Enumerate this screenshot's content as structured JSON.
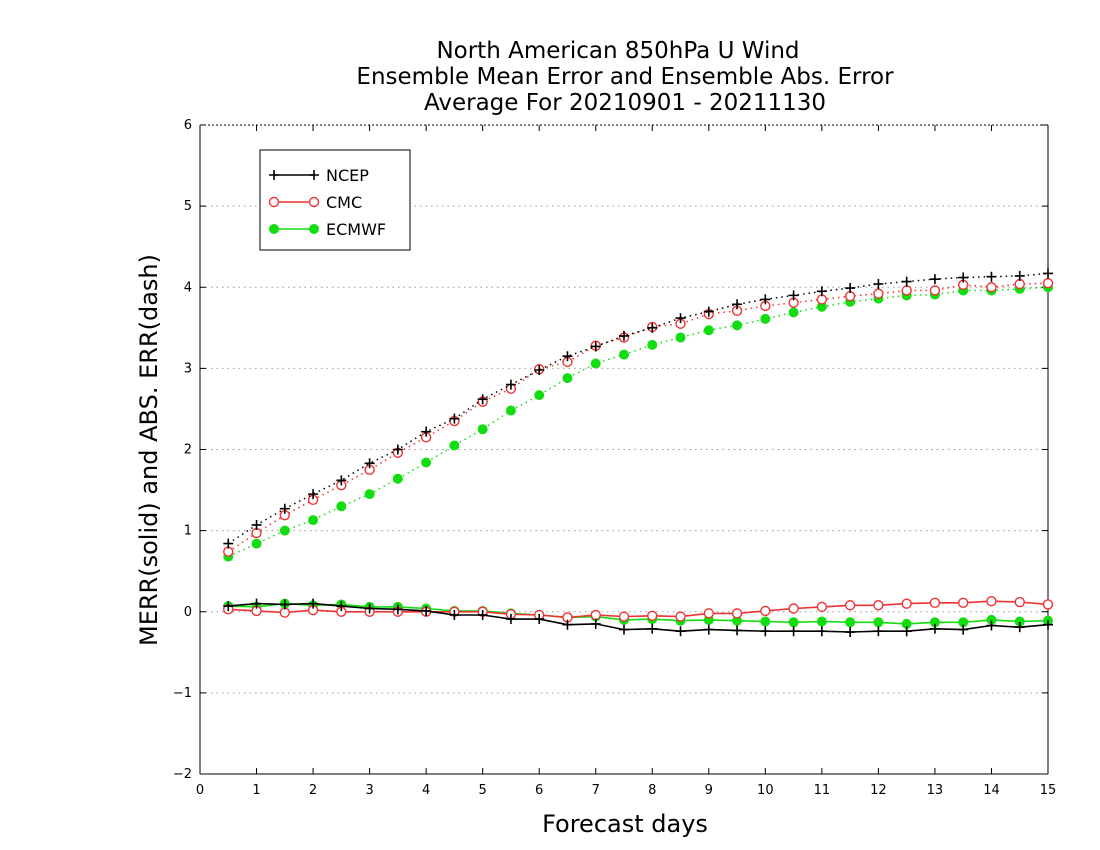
{
  "chart_data": {
    "type": "line",
    "title": [
      "North American 850hPa U Wind",
      "Ensemble Mean Error and Ensemble Abs. Error",
      "Average For 20210901 - 20211130"
    ],
    "xlabel": "Forecast days",
    "ylabel": "MERR(solid) and ABS. ERR(dash)",
    "xlim": [
      0,
      15
    ],
    "ylim": [
      -2,
      6
    ],
    "x_ticks": [
      0,
      1,
      2,
      3,
      4,
      5,
      6,
      7,
      8,
      9,
      10,
      11,
      12,
      13,
      14,
      15
    ],
    "y_ticks": [
      -2,
      -1,
      0,
      1,
      2,
      3,
      4,
      5,
      6
    ],
    "grid": "horizontal dotted",
    "legend_position": "top-left",
    "x": [
      0.5,
      1,
      1.5,
      2,
      2.5,
      3,
      3.5,
      4,
      4.5,
      5,
      5.5,
      6,
      6.5,
      7,
      7.5,
      8,
      8.5,
      9,
      9.5,
      10,
      10.5,
      11,
      11.5,
      12,
      12.5,
      13,
      13.5,
      14,
      14.5,
      15
    ],
    "series": [
      {
        "name": "NCEP",
        "color": "#000000",
        "marker": "plus",
        "mean_error": [
          0.07,
          0.1,
          0.09,
          0.1,
          0.07,
          0.04,
          0.03,
          0.01,
          -0.04,
          -0.04,
          -0.09,
          -0.09,
          -0.16,
          -0.15,
          -0.22,
          -0.21,
          -0.24,
          -0.22,
          -0.23,
          -0.24,
          -0.24,
          -0.24,
          -0.25,
          -0.24,
          -0.24,
          -0.21,
          -0.22,
          -0.17,
          -0.19,
          -0.16
        ],
        "abs_error": [
          0.84,
          1.07,
          1.27,
          1.45,
          1.62,
          1.83,
          2.0,
          2.22,
          2.38,
          2.62,
          2.8,
          2.98,
          3.15,
          3.27,
          3.4,
          3.5,
          3.62,
          3.7,
          3.79,
          3.85,
          3.9,
          3.95,
          3.99,
          4.04,
          4.07,
          4.1,
          4.12,
          4.13,
          4.14,
          4.17
        ]
      },
      {
        "name": "CMC",
        "color": "#ee3333",
        "marker": "open-circle",
        "mean_error": [
          0.03,
          0.01,
          -0.01,
          0.02,
          0.0,
          0.0,
          0.0,
          0.0,
          0.0,
          0.0,
          -0.03,
          -0.04,
          -0.07,
          -0.04,
          -0.06,
          -0.05,
          -0.06,
          -0.02,
          -0.02,
          0.01,
          0.04,
          0.06,
          0.08,
          0.08,
          0.1,
          0.11,
          0.11,
          0.13,
          0.12,
          0.09
        ],
        "abs_error": [
          0.74,
          0.97,
          1.19,
          1.38,
          1.56,
          1.75,
          1.96,
          2.15,
          2.35,
          2.59,
          2.75,
          2.99,
          3.08,
          3.28,
          3.38,
          3.51,
          3.55,
          3.67,
          3.71,
          3.77,
          3.81,
          3.85,
          3.89,
          3.92,
          3.96,
          3.96,
          4.03,
          4.0,
          4.04,
          4.05
        ]
      },
      {
        "name": "ECMWF",
        "color": "#11dd11",
        "marker": "filled-circle",
        "mean_error": [
          0.07,
          0.06,
          0.1,
          0.08,
          0.09,
          0.06,
          0.06,
          0.04,
          0.01,
          0.01,
          -0.02,
          -0.04,
          -0.07,
          -0.06,
          -0.1,
          -0.09,
          -0.11,
          -0.1,
          -0.11,
          -0.12,
          -0.13,
          -0.12,
          -0.13,
          -0.13,
          -0.15,
          -0.13,
          -0.13,
          -0.1,
          -0.12,
          -0.11
        ],
        "abs_error": [
          0.68,
          0.84,
          1.0,
          1.13,
          1.3,
          1.45,
          1.64,
          1.84,
          2.05,
          2.25,
          2.48,
          2.67,
          2.88,
          3.06,
          3.17,
          3.29,
          3.38,
          3.47,
          3.53,
          3.61,
          3.69,
          3.76,
          3.82,
          3.86,
          3.9,
          3.91,
          3.96,
          3.96,
          3.98,
          4.0
        ]
      }
    ]
  }
}
